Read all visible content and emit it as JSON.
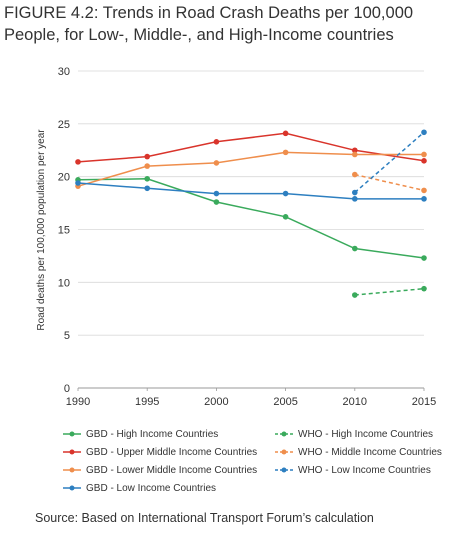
{
  "figure": {
    "title": "FIGURE 4.2: Trends in Road Crash Deaths per 100,000\nPeople, for Low-, Middle-, and High-Income countries",
    "source": "Source: Based on International Transport Forum’s calculation"
  },
  "chart_data": {
    "type": "line",
    "title": "",
    "xlabel": "",
    "ylabel": "Road deaths per 100,000 population per year",
    "x_ticks": [
      1990,
      1995,
      2000,
      2005,
      2010,
      2015
    ],
    "y_ticks": [
      0,
      5,
      10,
      15,
      20,
      25,
      30
    ],
    "xlim": [
      1990,
      2015
    ],
    "ylim": [
      0,
      30
    ],
    "grid": "horizontal",
    "legend_position": "bottom",
    "series": [
      {
        "name": "GBD - High Income Countries",
        "color": "#3aaa5c",
        "dashed": false,
        "points": [
          [
            1990,
            19.7
          ],
          [
            1995,
            19.8
          ],
          [
            2000,
            17.6
          ],
          [
            2005,
            16.2
          ],
          [
            2010,
            13.2
          ],
          [
            2015,
            12.3
          ]
        ]
      },
      {
        "name": "GBD - Upper Middle Income Countries",
        "color": "#d9342b",
        "dashed": false,
        "points": [
          [
            1990,
            21.4
          ],
          [
            1995,
            21.9
          ],
          [
            2000,
            23.3
          ],
          [
            2005,
            24.1
          ],
          [
            2010,
            22.5
          ],
          [
            2015,
            21.5
          ]
        ]
      },
      {
        "name": "GBD - Lower Middle Income Countries",
        "color": "#ef8e4c",
        "dashed": false,
        "points": [
          [
            1990,
            19.1
          ],
          [
            1995,
            21.0
          ],
          [
            2000,
            21.3
          ],
          [
            2005,
            22.3
          ],
          [
            2010,
            22.1
          ],
          [
            2015,
            22.1
          ]
        ]
      },
      {
        "name": "GBD - Low Income Countries",
        "color": "#2d7fc0",
        "dashed": false,
        "points": [
          [
            1990,
            19.4
          ],
          [
            1995,
            18.9
          ],
          [
            2000,
            18.4
          ],
          [
            2005,
            18.4
          ],
          [
            2010,
            17.9
          ],
          [
            2015,
            17.9
          ]
        ]
      },
      {
        "name": "WHO - High Income Countries",
        "color": "#3aaa5c",
        "dashed": true,
        "points": [
          [
            2010,
            8.8
          ],
          [
            2015,
            9.4
          ]
        ]
      },
      {
        "name": "WHO - Middle Income Countries",
        "color": "#ef8e4c",
        "dashed": true,
        "points": [
          [
            2010,
            20.2
          ],
          [
            2015,
            18.7
          ]
        ]
      },
      {
        "name": "WHO - Low Income Countries",
        "color": "#2d7fc0",
        "dashed": true,
        "points": [
          [
            2010,
            18.5
          ],
          [
            2015,
            24.2
          ]
        ]
      }
    ]
  }
}
